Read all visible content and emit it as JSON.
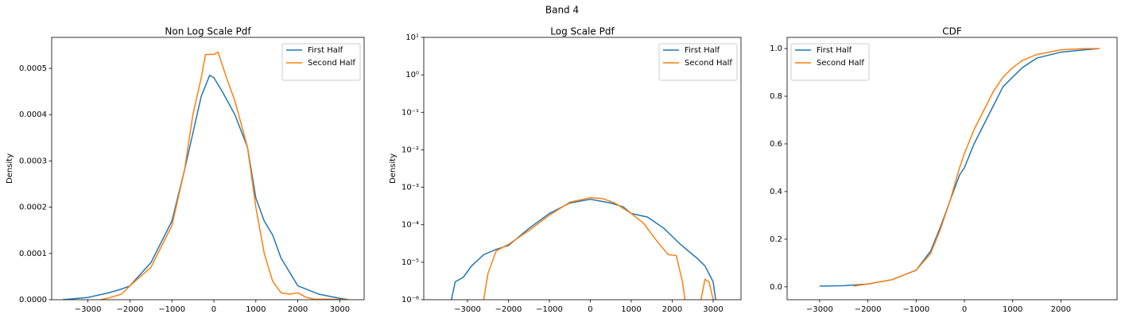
{
  "title": "Band 4",
  "chart_data": [
    {
      "type": "line",
      "title": "Non Log Scale Pdf",
      "ylabel": "Density",
      "legend": "upper right",
      "xlim": [
        -3864,
        3580
      ],
      "ylim": [
        0,
        0.000567
      ],
      "xticks": [
        {
          "value": -3000,
          "label": "−3000"
        },
        {
          "value": -2000,
          "label": "−2000"
        },
        {
          "value": -1000,
          "label": "−1000"
        },
        0,
        1000,
        2000,
        3000
      ],
      "yticks": [
        {
          "value": 0,
          "label": "0.0000"
        },
        0.0001,
        0.0002,
        0.0003,
        0.0004,
        0.0005
      ],
      "series": [
        {
          "name": "First Half",
          "color": "#1f77b4",
          "x": [
            -3600,
            -3000,
            -2500,
            -2200,
            -2000,
            -1500,
            -1000,
            -700,
            -500,
            -300,
            -100,
            0,
            200,
            500,
            800,
            1000,
            1200,
            1400,
            1600,
            2000,
            2500,
            3000,
            3200
          ],
          "values": [
            0,
            5e-06,
            1.5e-05,
            2.3e-05,
            3e-05,
            8e-05,
            0.00017,
            0.00028,
            0.00036,
            0.00044,
            0.000485,
            0.00048,
            0.00045,
            0.0004,
            0.00033,
            0.00022,
            0.00017,
            0.00014,
            9e-05,
            3e-05,
            1.2e-05,
            3e-06,
            0
          ]
        },
        {
          "name": "Second Half",
          "color": "#ff7f0e",
          "x": [
            -2700,
            -2500,
            -2200,
            -2000,
            -1500,
            -1000,
            -700,
            -500,
            -300,
            -200,
            0,
            100,
            300,
            500,
            800,
            1000,
            1200,
            1400,
            1600,
            1800,
            2000,
            2200,
            2400,
            2700,
            3200
          ],
          "values": [
            0,
            4e-06,
            1.2e-05,
            3e-05,
            7e-05,
            0.00016,
            0.00028,
            0.0004,
            0.00048,
            0.00053,
            0.00053,
            0.000535,
            0.00048,
            0.00043,
            0.00033,
            0.0002,
            0.0001,
            4e-05,
            1.5e-05,
            1.2e-05,
            1.5e-05,
            5e-06,
            1e-06,
            1e-06,
            0
          ]
        }
      ]
    },
    {
      "type": "line",
      "title": "Log Scale Pdf",
      "ylabel": "Density",
      "legend": "upper right",
      "yscale": "log",
      "xlim": [
        -4068,
        3680
      ],
      "ylim": [
        1e-06,
        10
      ],
      "xticks": [
        {
          "value": -3000,
          "label": "−3000"
        },
        {
          "value": -2000,
          "label": "−2000"
        },
        {
          "value": -1000,
          "label": "−1000"
        },
        0,
        1000,
        2000,
        3000
      ],
      "yticks": [
        {
          "value": 1e-06,
          "label": "10⁻⁶"
        },
        {
          "value": 1e-05,
          "label": "10⁻⁵"
        },
        {
          "value": 0.0001,
          "label": "10⁻⁴"
        },
        {
          "value": 0.001,
          "label": "10⁻³"
        },
        {
          "value": 0.01,
          "label": "10⁻²"
        },
        {
          "value": 0.1,
          "label": "10⁻¹"
        },
        {
          "value": 1,
          "label": "10⁰"
        },
        {
          "value": 10,
          "label": "10¹"
        }
      ],
      "series": [
        {
          "name": "First Half",
          "color": "#1f77b4",
          "x": [
            -3450,
            -3300,
            -3100,
            -2900,
            -2600,
            -2300,
            -2000,
            -1500,
            -1000,
            -500,
            0,
            500,
            800,
            1000,
            1400,
            1800,
            2200,
            2600,
            2800,
            3000,
            3100
          ],
          "values": [
            5e-07,
            3e-06,
            4e-06,
            8e-06,
            1.6e-05,
            2.2e-05,
            2.8e-05,
            8e-05,
            0.0002,
            0.00038,
            0.00048,
            0.00038,
            0.0003,
            0.0002,
            0.00016,
            8e-05,
            3e-05,
            1.3e-05,
            8e-06,
            3e-06,
            5e-07
          ]
        },
        {
          "name": "Second Half",
          "color": "#ff7f0e",
          "x": [
            -2650,
            -2500,
            -2300,
            -2000,
            -1500,
            -1000,
            -500,
            0,
            300,
            600,
            1000,
            1300,
            1600,
            1900,
            2100,
            2250,
            2350,
            2500,
            2650,
            2800,
            2900,
            3000,
            3050
          ],
          "values": [
            5e-07,
            5e-06,
            2e-05,
            3e-05,
            7e-05,
            0.00018,
            0.0004,
            0.00053,
            0.0005,
            0.00038,
            0.0002,
            0.00011,
            4e-05,
            1.6e-05,
            1.5e-05,
            3e-06,
            5e-07,
            null,
            5e-07,
            3.5e-06,
            3e-06,
            1e-06,
            5e-07
          ]
        }
      ]
    },
    {
      "type": "line",
      "title": "CDF",
      "legend": "upper left",
      "xlim": [
        -3674,
        3163
      ],
      "ylim": [
        -0.054,
        1.047
      ],
      "xticks": [
        {
          "value": -3000,
          "label": "−3000"
        },
        {
          "value": -2000,
          "label": "−2000"
        },
        {
          "value": -1000,
          "label": "−1000"
        },
        0,
        1000,
        2000
      ],
      "yticks": [
        {
          "value": 0,
          "label": "0.0"
        },
        0.2,
        0.4,
        0.6,
        0.8,
        {
          "value": 1,
          "label": "1.0"
        }
      ],
      "series": [
        {
          "name": "First Half",
          "color": "#1f77b4",
          "x": [
            -3000,
            -2500,
            -2000,
            -1500,
            -1000,
            -700,
            -500,
            -300,
            -100,
            0,
            200,
            400,
            600,
            800,
            1000,
            1200,
            1500,
            2000,
            2500,
            2800
          ],
          "values": [
            0.003,
            0.005,
            0.012,
            0.03,
            0.07,
            0.15,
            0.25,
            0.36,
            0.47,
            0.5,
            0.6,
            0.68,
            0.76,
            0.84,
            0.88,
            0.92,
            0.96,
            0.985,
            0.995,
            1.0
          ]
        },
        {
          "name": "Second Half",
          "color": "#ff7f0e",
          "x": [
            -2300,
            -2000,
            -1500,
            -1000,
            -700,
            -500,
            -300,
            -100,
            0,
            200,
            400,
            600,
            800,
            1000,
            1200,
            1500,
            2000,
            2500,
            2800
          ],
          "values": [
            0.003,
            0.012,
            0.03,
            0.07,
            0.14,
            0.24,
            0.36,
            0.5,
            0.56,
            0.66,
            0.74,
            0.82,
            0.88,
            0.92,
            0.95,
            0.975,
            0.995,
            1.0,
            1.0
          ]
        }
      ]
    }
  ]
}
